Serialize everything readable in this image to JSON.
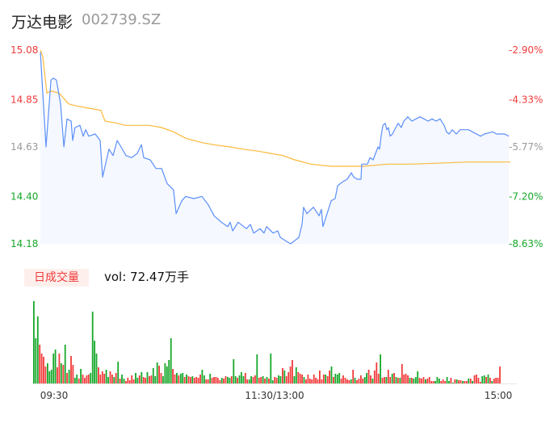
{
  "header": {
    "name": "万达电影",
    "code": "002739.SZ"
  },
  "volume_panel": {
    "tag": "日成交量",
    "summary": "vol: 72.47万手"
  },
  "colors": {
    "up": "#f23a3a",
    "down": "#16a82a",
    "flat": "#999999",
    "price_line": "#5b8ff9",
    "avg_line": "#fbb93a",
    "area": "#f5f8ff",
    "tag_bg": "#fdf0ec"
  },
  "chart_data": [
    {
      "type": "line",
      "x_unit": "minutes since 09:30 (trading time)",
      "xlim": [
        0,
        240
      ],
      "ylim": [
        14.18,
        15.08
      ],
      "x_tick_labels": [
        "09:30",
        "11:30/13:00",
        "15:00"
      ],
      "y_tick_labels_left": [
        {
          "label": "15.08",
          "value": 15.08,
          "tone": "up"
        },
        {
          "label": "14.85",
          "value": 14.85,
          "tone": "up"
        },
        {
          "label": "14.63",
          "value": 14.63,
          "tone": "flat"
        },
        {
          "label": "14.40",
          "value": 14.4,
          "tone": "down"
        },
        {
          "label": "14.18",
          "value": 14.18,
          "tone": "down"
        }
      ],
      "y_tick_labels_right": [
        {
          "label": "-2.90%",
          "value": 15.08,
          "tone": "up"
        },
        {
          "label": "-4.33%",
          "value": 14.85,
          "tone": "up"
        },
        {
          "label": "-5.77%",
          "value": 14.63,
          "tone": "flat"
        },
        {
          "label": "-7.20%",
          "value": 14.4,
          "tone": "down"
        },
        {
          "label": "-8.63%",
          "value": 14.18,
          "tone": "down"
        }
      ],
      "series": [
        {
          "key": "price",
          "points": [
            [
              0,
              15.07
            ],
            [
              2.9,
              14.63
            ],
            [
              5.4,
              14.94
            ],
            [
              6.6,
              14.95
            ],
            [
              8.2,
              14.94
            ],
            [
              10.3,
              14.83
            ],
            [
              12,
              14.63
            ],
            [
              13.6,
              14.76
            ],
            [
              15.7,
              14.75
            ],
            [
              16.5,
              14.66
            ],
            [
              17.7,
              14.72
            ],
            [
              20.2,
              14.73
            ],
            [
              21.9,
              14.68
            ],
            [
              23.1,
              14.71
            ],
            [
              24.7,
              14.68
            ],
            [
              28,
              14.69
            ],
            [
              30.5,
              14.66
            ],
            [
              31.8,
              14.49
            ],
            [
              35,
              14.62
            ],
            [
              37.1,
              14.59
            ],
            [
              39.2,
              14.66
            ],
            [
              41.2,
              14.63
            ],
            [
              43.7,
              14.59
            ],
            [
              46.6,
              14.58
            ],
            [
              49.5,
              14.6
            ],
            [
              51.6,
              14.64
            ],
            [
              52.8,
              14.58
            ],
            [
              56.1,
              14.57
            ],
            [
              59,
              14.53
            ],
            [
              61.9,
              14.53
            ],
            [
              64.7,
              14.46
            ],
            [
              68,
              14.43
            ],
            [
              69.3,
              14.32
            ],
            [
              72.2,
              14.38
            ],
            [
              74.2,
              14.4
            ],
            [
              78.4,
              14.39
            ],
            [
              82.5,
              14.4
            ],
            [
              85.8,
              14.36
            ],
            [
              88.7,
              14.31
            ],
            [
              92.4,
              14.28
            ],
            [
              95.7,
              14.26
            ],
            [
              96.9,
              14.28
            ],
            [
              98.2,
              14.24
            ],
            [
              101,
              14.28
            ],
            [
              105.2,
              14.25
            ],
            [
              107.2,
              14.27
            ],
            [
              108.9,
              14.23
            ],
            [
              112.2,
              14.25
            ],
            [
              114.2,
              14.23
            ],
            [
              115.5,
              14.26
            ],
            [
              118.8,
              14.23
            ],
            [
              121.2,
              14.24
            ],
            [
              122.5,
              14.21
            ],
            [
              125.8,
              14.19
            ],
            [
              127.8,
              14.18
            ],
            [
              132,
              14.21
            ],
            [
              133.6,
              14.27
            ],
            [
              134.4,
              14.35
            ],
            [
              136.1,
              14.32
            ],
            [
              139.4,
              14.35
            ],
            [
              142.3,
              14.31
            ],
            [
              143.5,
              14.34
            ],
            [
              144.3,
              14.26
            ],
            [
              146.4,
              14.32
            ],
            [
              148.5,
              14.38
            ],
            [
              150.5,
              14.39
            ],
            [
              151.8,
              14.45
            ],
            [
              154.7,
              14.47
            ],
            [
              156.7,
              14.48
            ],
            [
              158.8,
              14.51
            ],
            [
              160,
              14.49
            ],
            [
              161.7,
              14.48
            ],
            [
              163.7,
              14.48
            ],
            [
              164.1,
              14.55
            ],
            [
              167,
              14.55
            ],
            [
              168.3,
              14.58
            ],
            [
              169.9,
              14.57
            ],
            [
              172.4,
              14.63
            ],
            [
              173.2,
              14.62
            ],
            [
              174,
              14.68
            ],
            [
              174.9,
              14.73
            ],
            [
              176.1,
              14.74
            ],
            [
              176.9,
              14.71
            ],
            [
              177.7,
              14.72
            ],
            [
              178.6,
              14.68
            ],
            [
              179.8,
              14.69
            ],
            [
              181.5,
              14.72
            ],
            [
              182.7,
              14.74
            ],
            [
              184.3,
              14.72
            ],
            [
              185.6,
              14.75
            ],
            [
              187.6,
              14.77
            ],
            [
              189.7,
              14.75
            ],
            [
              191.8,
              14.76
            ],
            [
              193.8,
              14.77
            ],
            [
              195.9,
              14.76
            ],
            [
              198,
              14.75
            ],
            [
              200,
              14.76
            ],
            [
              202.1,
              14.75
            ],
            [
              204.1,
              14.76
            ],
            [
              206.2,
              14.73
            ],
            [
              207.4,
              14.7
            ],
            [
              208.7,
              14.69
            ],
            [
              210.3,
              14.71
            ],
            [
              212.4,
              14.69
            ],
            [
              214.4,
              14.71
            ],
            [
              218.6,
              14.71
            ],
            [
              220.6,
              14.7
            ],
            [
              224.8,
              14.68
            ],
            [
              226.8,
              14.69
            ],
            [
              230.9,
              14.7
            ],
            [
              233,
              14.69
            ],
            [
              237.1,
              14.69
            ],
            [
              239.2,
              14.68
            ]
          ]
        },
        {
          "key": "average",
          "points": [
            [
              0,
              15.08
            ],
            [
              1.2,
              15.05
            ],
            [
              3.3,
              14.88
            ],
            [
              5.4,
              14.89
            ],
            [
              9.5,
              14.88
            ],
            [
              11.5,
              14.86
            ],
            [
              14.4,
              14.83
            ],
            [
              18.6,
              14.82
            ],
            [
              24.7,
              14.81
            ],
            [
              30.9,
              14.8
            ],
            [
              33,
              14.75
            ],
            [
              39.2,
              14.74
            ],
            [
              43.3,
              14.73
            ],
            [
              55.7,
              14.73
            ],
            [
              61.9,
              14.72
            ],
            [
              68,
              14.7
            ],
            [
              74.2,
              14.67
            ],
            [
              82.5,
              14.65
            ],
            [
              88.7,
              14.64
            ],
            [
              96.9,
              14.63
            ],
            [
              103.1,
              14.62
            ],
            [
              111.3,
              14.61
            ],
            [
              117.5,
              14.6
            ],
            [
              123.7,
              14.59
            ],
            [
              129.9,
              14.57
            ],
            [
              138.1,
              14.55
            ],
            [
              148.5,
              14.54
            ],
            [
              164.9,
              14.54
            ],
            [
              177.3,
              14.55
            ],
            [
              189.7,
              14.55
            ],
            [
              218.6,
              14.56
            ],
            [
              240,
              14.56
            ]
          ]
        }
      ]
    },
    {
      "type": "bar",
      "x_unit": "minute bars",
      "values": [
        102,
        56,
        83,
        48,
        37,
        33,
        21,
        25,
        15,
        17,
        37,
        42,
        20,
        37,
        25,
        23,
        48,
        13,
        17,
        34,
        23,
        7,
        11,
        6,
        18,
        11,
        7,
        10,
        11,
        13,
        89,
        53,
        37,
        20,
        11,
        15,
        12,
        17,
        8,
        15,
        11,
        8,
        13,
        27,
        6,
        11,
        6,
        3,
        7,
        4,
        10,
        5,
        13,
        7,
        10,
        14,
        8,
        7,
        14,
        9,
        10,
        19,
        9,
        26,
        22,
        13,
        9,
        25,
        21,
        29,
        56,
        18,
        11,
        13,
        10,
        12,
        13,
        8,
        11,
        9,
        8,
        9,
        7,
        8,
        7,
        11,
        17,
        10,
        5,
        5,
        12,
        7,
        8,
        8,
        7,
        4,
        7,
        6,
        9,
        8,
        7,
        9,
        30,
        9,
        7,
        10,
        14,
        9,
        13,
        5,
        5,
        9,
        8,
        10,
        36,
        7,
        8,
        9,
        6,
        8,
        6,
        37,
        4,
        8,
        7,
        10,
        9,
        19,
        16,
        9,
        14,
        21,
        29,
        9,
        20,
        14,
        12,
        11,
        8,
        5,
        11,
        6,
        5,
        11,
        7,
        5,
        16,
        5,
        11,
        11,
        9,
        16,
        21,
        8,
        12,
        11,
        13,
        6,
        10,
        7,
        5,
        4,
        5,
        17,
        7,
        4,
        6,
        10,
        6,
        8,
        13,
        17,
        10,
        6,
        16,
        26,
        12,
        36,
        7,
        8,
        8,
        17,
        8,
        12,
        13,
        8,
        7,
        7,
        24,
        11,
        12,
        10,
        7,
        7,
        6,
        8,
        15,
        7,
        6,
        8,
        5,
        6,
        8,
        3,
        3,
        3,
        8,
        6,
        3,
        5,
        3,
        8,
        3,
        7,
        1,
        5,
        5,
        4,
        4,
        3,
        3,
        3,
        6,
        6,
        3,
        10,
        11,
        7,
        2,
        9,
        10,
        8,
        11,
        7,
        3,
        6,
        7,
        7,
        21
      ],
      "directions": "gggrrrrgggggrrgrgrgrrggrgrrrrggggrrrrggrrgrgrggrrrrrggrgrrgrrgggrrgggggrrgrggrgrrgrrrrggrrgrrrrrgrrggrggrgggrrggrrgrrgrgrggrrggrgrrrrggrrrgrrrrrrrrrrgrrgrgggrrrrrgrgrrrrggrrgrrrgrrgrrgrgrgrrrrgrgggrrrgrrrrgggrrrggrgrgrrgrrgrgrrrrggrgrgrrrrrgrrgl"
    }
  ]
}
